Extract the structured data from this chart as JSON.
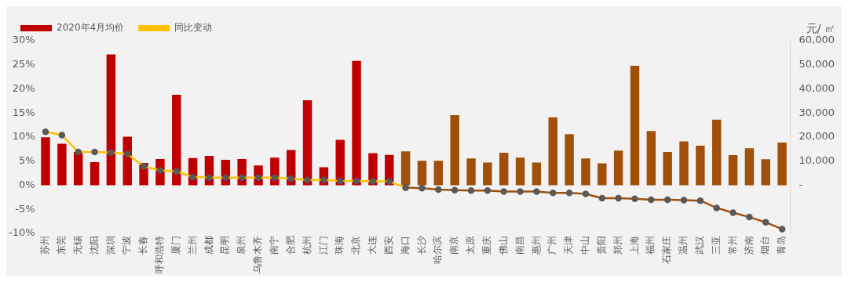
{
  "chart_data": {
    "type": "bar",
    "categories": [
      "苏州",
      "东莞",
      "无锡",
      "沈阳",
      "深圳",
      "宁波",
      "长春",
      "呼和浩特",
      "厦门",
      "兰州",
      "成都",
      "昆明",
      "泉州",
      "乌鲁木齐",
      "南宁",
      "合肥",
      "杭州",
      "江门",
      "珠海",
      "北京",
      "大连",
      "西安",
      "海口",
      "长沙",
      "哈尔滨",
      "南京",
      "太原",
      "重庆",
      "佛山",
      "南昌",
      "惠州",
      "广州",
      "天津",
      "中山",
      "贵阳",
      "郑州",
      "上海",
      "福州",
      "石家庄",
      "温州",
      "武汉",
      "三亚",
      "常州",
      "济南",
      "烟台",
      "青岛"
    ],
    "series": [
      {
        "name": "2020年4月均价",
        "axis": "y2",
        "color": "#c00000",
        "colors": [
          "#c00000",
          "#c00000",
          "#c00000",
          "#c00000",
          "#c00000",
          "#c00000",
          "#c00000",
          "#c00000",
          "#c00000",
          "#c00000",
          "#c00000",
          "#c00000",
          "#c00000",
          "#c00000",
          "#c00000",
          "#c00000",
          "#c00000",
          "#c00000",
          "#c00000",
          "#c00000",
          "#c00000",
          "#c00000",
          "#a0500a",
          "#a0500a",
          "#a0500a",
          "#a0500a",
          "#a0500a",
          "#a0500a",
          "#a0500a",
          "#a0500a",
          "#a0500a",
          "#a0500a",
          "#a0500a",
          "#a0500a",
          "#a0500a",
          "#a0500a",
          "#a0500a",
          "#a0500a",
          "#a0500a",
          "#a0500a",
          "#a0500a",
          "#a0500a",
          "#a0500a",
          "#a0500a",
          "#a0500a",
          "#a0500a"
        ],
        "values": [
          19900,
          17200,
          13800,
          9600,
          54300,
          20200,
          9300,
          10900,
          37600,
          11300,
          12200,
          10600,
          10900,
          8200,
          11500,
          14600,
          35300,
          7500,
          18900,
          51600,
          13300,
          12600,
          14100,
          10200,
          10200,
          29100,
          11100,
          9400,
          13500,
          11500,
          9400,
          28200,
          21200,
          11100,
          9100,
          14400,
          49600,
          22500,
          13800,
          18200,
          16400,
          27200,
          12500,
          15400,
          10800,
          17700
        ]
      },
      {
        "name": "同比变动",
        "type": "line",
        "axis": "y",
        "color": "#ffc000",
        "marker": "circle",
        "values": [
          11.1,
          10.4,
          6.9,
          6.9,
          6.8,
          6.5,
          3.9,
          3.1,
          2.9,
          1.7,
          1.6,
          1.6,
          1.6,
          1.6,
          1.6,
          1.4,
          1.1,
          1.1,
          0.9,
          0.9,
          0.8,
          0.8,
          -0.5,
          null,
          null,
          null,
          null,
          null,
          null,
          null,
          null,
          null,
          null,
          null,
          null,
          null,
          null,
          null,
          null,
          null,
          null,
          null,
          null,
          null,
          null,
          null
        ]
      },
      {
        "type": "line",
        "axis": "y",
        "color": "#a0500a",
        "marker": "circle",
        "values": [
          null,
          null,
          null,
          null,
          null,
          null,
          null,
          null,
          null,
          null,
          null,
          null,
          null,
          null,
          null,
          null,
          null,
          null,
          null,
          null,
          null,
          null,
          -0.5,
          -0.6,
          -0.9,
          -1.0,
          -1.1,
          -1.1,
          -1.3,
          -1.3,
          -1.3,
          -1.6,
          -1.6,
          -1.8,
          -2.7,
          -2.7,
          -2.8,
          -3.0,
          -3.0,
          -3.1,
          -3.2,
          -4.7,
          -5.7,
          -6.6,
          -7.7,
          -9.1
        ]
      }
    ],
    "ylim": [
      -10,
      30
    ],
    "yticks": [
      {
        "value": -10,
        "label": "-10%"
      },
      {
        "value": -5,
        "label": "-5%"
      },
      {
        "value": 0,
        "label": "0%"
      },
      {
        "value": 5,
        "label": "5%"
      },
      {
        "value": 10,
        "label": "10%"
      },
      {
        "value": 15,
        "label": "15%"
      },
      {
        "value": 20,
        "label": "20%"
      },
      {
        "value": 25,
        "label": "25%"
      },
      {
        "value": 30,
        "label": "30%"
      }
    ],
    "y2lim": [
      -20000,
      60000
    ],
    "y2ticks": [
      {
        "value": 0,
        "label": "-"
      },
      {
        "value": 10000,
        "label": "10,000"
      },
      {
        "value": 20000,
        "label": "20,000"
      },
      {
        "value": 30000,
        "label": "30,000"
      },
      {
        "value": 40000,
        "label": "40,000"
      },
      {
        "value": 50000,
        "label": "50,000"
      },
      {
        "value": 60000,
        "label": "60,000"
      }
    ],
    "y2label": "元/ ㎡",
    "legend": "top",
    "grid": false
  }
}
